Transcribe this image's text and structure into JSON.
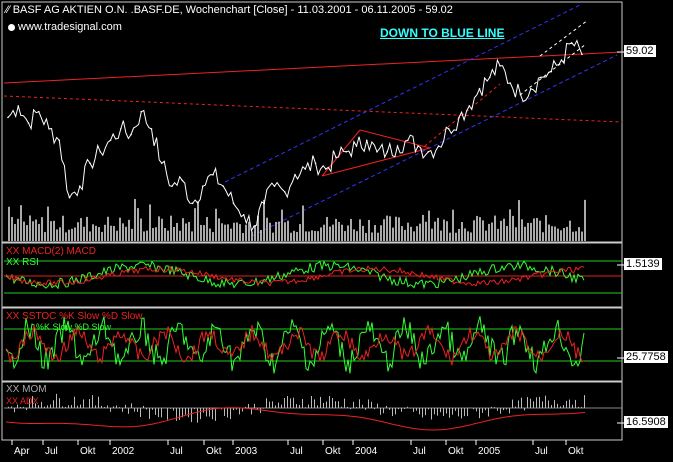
{
  "header": {
    "title": "BASF AG AKTIEN O.N. .BASF.DE, Wochenchart [Close] - 11.03.2001 - 06.11.2005 - 59.02",
    "source": "www.tradesignal.com",
    "annotation": "DOWN TO BLUE LINE"
  },
  "panels": {
    "macd_label": "XX MACD(2) MACD",
    "rsi_label": "XX RSI",
    "stoch_label": "XX SSTOC %K Slow %D Slow",
    "stoch_sub": "%K Slow %D Slow",
    "mom_label": "XX MOM",
    "adx_label": "XX ADX"
  },
  "price_labels": {
    "main": "59.02",
    "rsi": "1.5139",
    "stoch": "25.7758",
    "mom": "16.5908"
  },
  "x_ticks": [
    "Apr",
    "Jul",
    "Okt",
    "2002",
    "Jul",
    "Okt",
    "2003",
    "Jul",
    "Okt",
    "2004",
    "Jul",
    "Okt",
    "2005",
    "Jul",
    "Okt"
  ],
  "chart_data": {
    "type": "line",
    "title": "BASF AG AKTIEN O.N. .BASF.DE, Wochenchart [Close] - 11.03.2001 - 06.11.2005 - 59.02",
    "x": [
      "2001-03",
      "2001-04",
      "2001-05",
      "2001-06",
      "2001-07",
      "2001-08",
      "2001-09",
      "2001-10",
      "2001-11",
      "2001-12",
      "2002-01",
      "2002-02",
      "2002-03",
      "2002-04",
      "2002-05",
      "2002-06",
      "2002-07",
      "2002-08",
      "2002-09",
      "2002-10",
      "2002-11",
      "2002-12",
      "2003-01",
      "2003-02",
      "2003-03",
      "2003-04",
      "2003-05",
      "2003-06",
      "2003-07",
      "2003-08",
      "2003-09",
      "2003-10",
      "2003-11",
      "2003-12",
      "2004-01",
      "2004-02",
      "2004-03",
      "2004-04",
      "2004-05",
      "2004-06",
      "2004-07",
      "2004-08",
      "2004-09",
      "2004-10",
      "2004-11",
      "2004-12",
      "2005-01",
      "2005-02",
      "2005-03",
      "2005-04",
      "2005-05",
      "2005-06",
      "2005-07",
      "2005-08",
      "2005-09",
      "2005-10",
      "2005-11"
    ],
    "series": [
      {
        "name": "Close",
        "values": [
          48,
          50,
          47,
          49,
          46,
          44,
          34,
          36,
          40,
          42,
          44,
          46,
          45,
          49,
          46,
          40,
          36,
          37,
          33,
          36,
          38,
          36,
          33,
          31,
          29,
          33,
          36,
          35,
          38,
          39,
          40,
          39,
          41,
          42,
          43,
          44,
          42,
          42,
          43,
          44,
          43,
          42,
          43,
          46,
          48,
          50,
          53,
          55,
          57,
          54,
          52,
          53,
          55,
          56,
          58,
          61,
          59
        ]
      }
    ],
    "ylim": [
      28,
      65
    ],
    "last_value": 59.02,
    "annotations": [
      "DOWN TO BLUE LINE"
    ],
    "indicators": [
      {
        "name": "MACD / RSI",
        "last_value": 1.5139
      },
      {
        "name": "SSTOC %K Slow %D Slow",
        "last_value": 25.7758
      },
      {
        "name": "MOM / ADX",
        "last_value": 16.5908
      }
    ]
  }
}
